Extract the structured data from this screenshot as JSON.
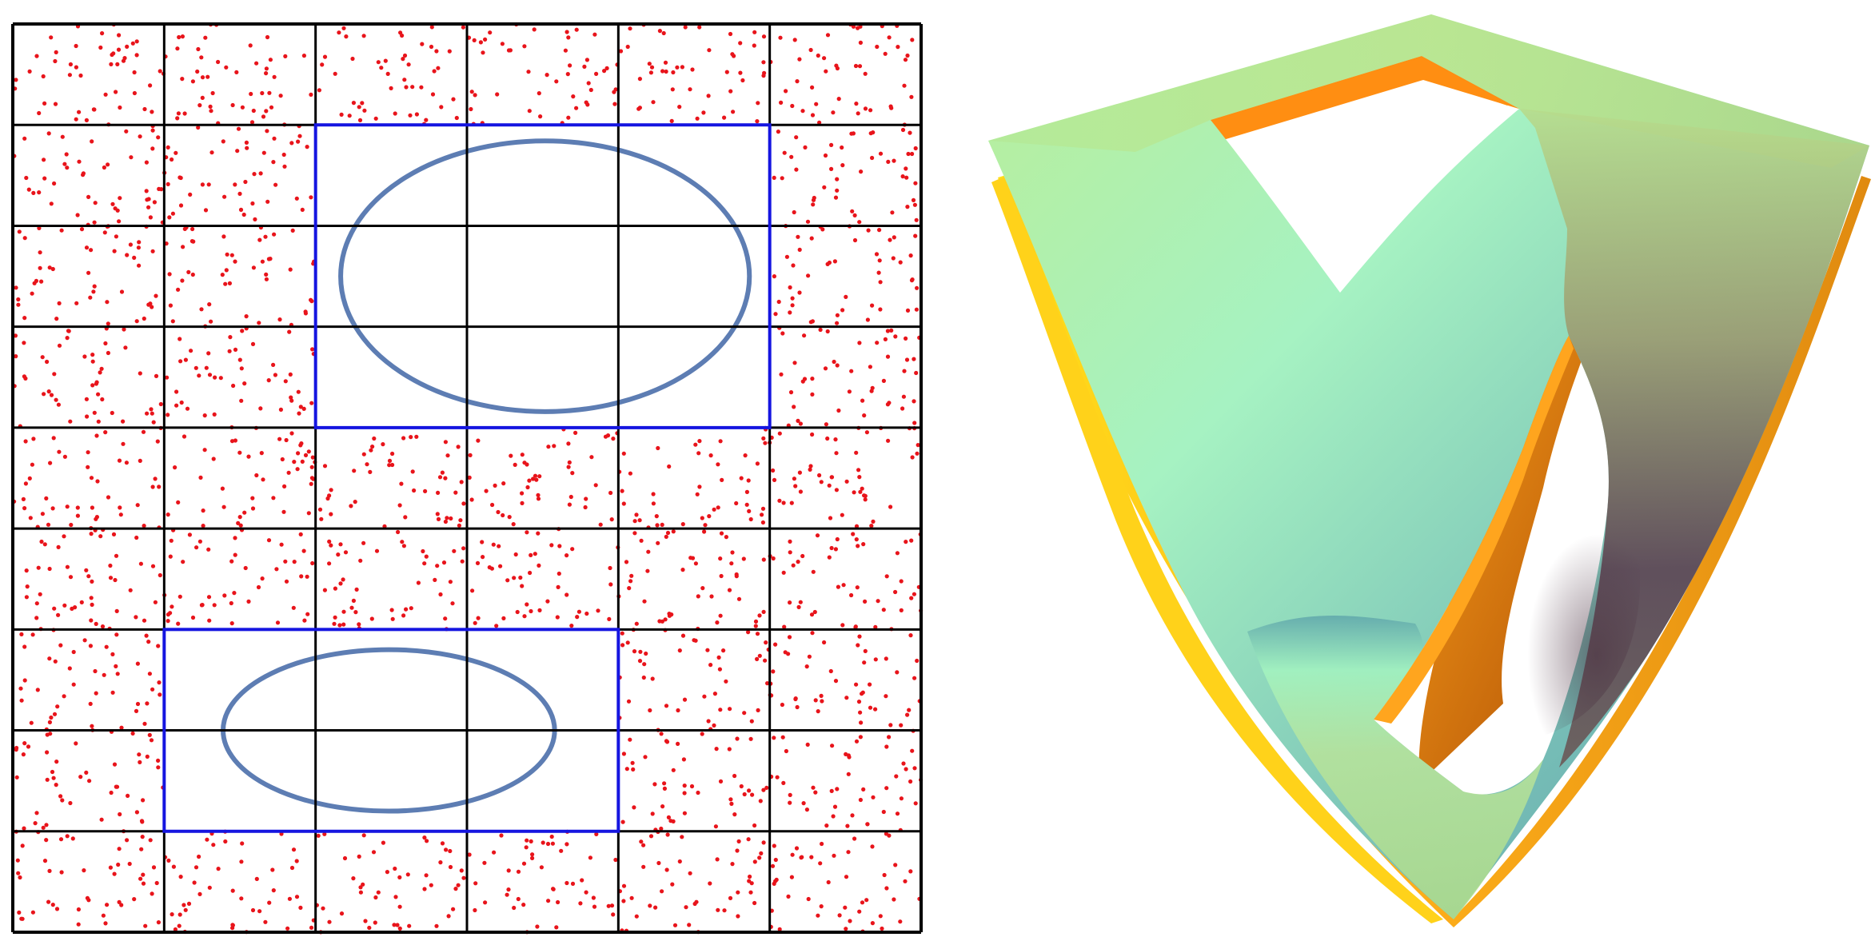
{
  "figure": {
    "panels": [
      {
        "id": "grid-panel",
        "kind": "partitioned-grid-with-random-points",
        "grid": {
          "columns": 6,
          "rows": 9
        },
        "point_color": "#e8141b",
        "grid_line_color": "#000000",
        "removed_region_outline_color": "#1515e0",
        "ellipse_color": "#5d7db3",
        "removed_regions": [
          {
            "columns": [
              3,
              4,
              5
            ],
            "rows": [
              2,
              3,
              4
            ],
            "contains": "ellipse"
          },
          {
            "columns": [
              2,
              3,
              4
            ],
            "rows": [
              7,
              8
            ],
            "contains": "ellipse"
          }
        ]
      },
      {
        "id": "surface-panel",
        "kind": "3d-surface-with-two-holes",
        "top_side_colors": [
          "#b6e08a",
          "#a8f4c0",
          "#6fb5b0",
          "#5a4550"
        ],
        "under_side_colors": [
          "#ffe11a",
          "#ff9a10",
          "#c0650a",
          "#6a3a08"
        ]
      }
    ]
  }
}
